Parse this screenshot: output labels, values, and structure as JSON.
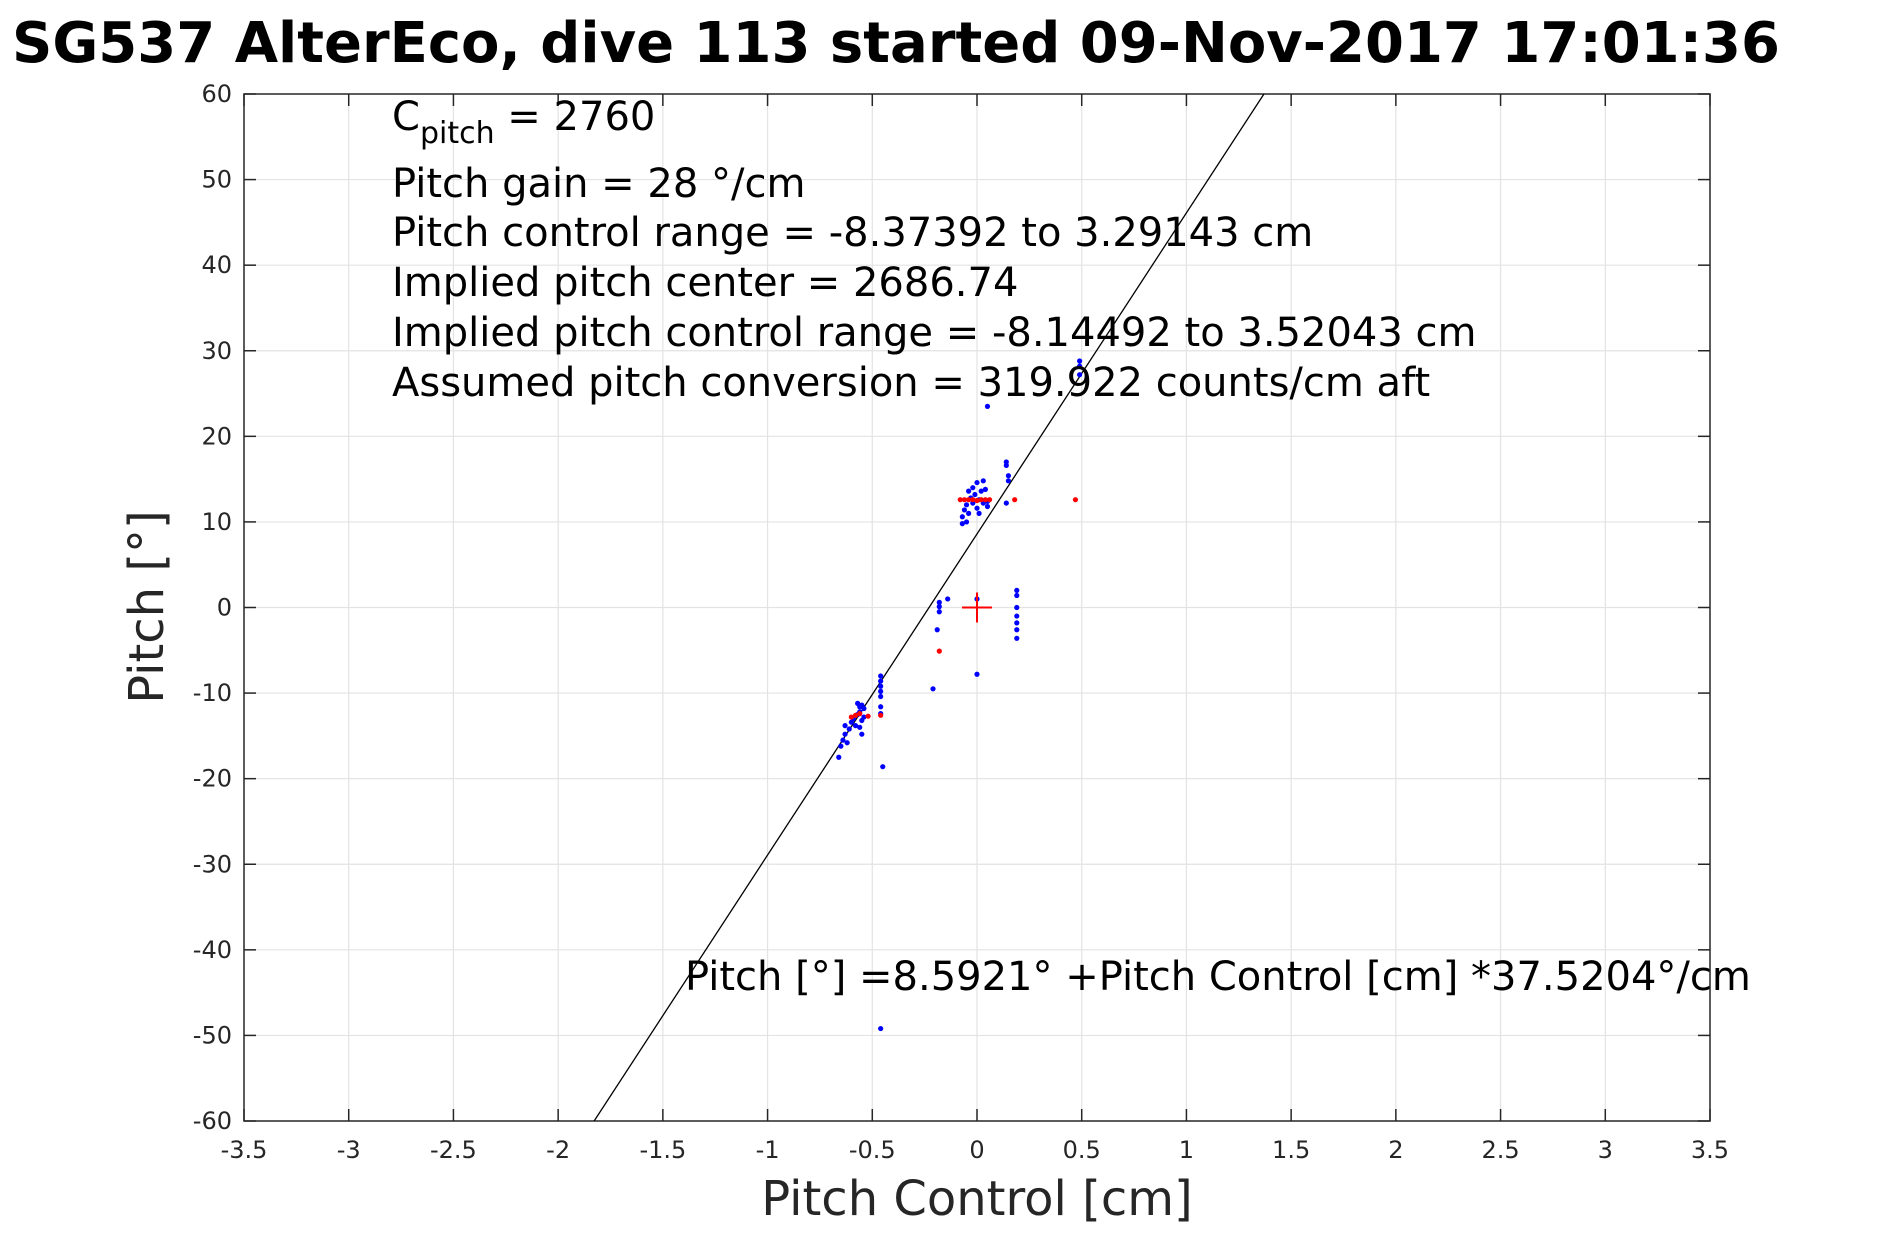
{
  "chart_data": {
    "type": "scatter",
    "title": "SG537 AlterEco, dive 113 started 09-Nov-2017 17:01:36",
    "xlabel": "Pitch Control [cm]",
    "ylabel": "Pitch [°]",
    "xlim": [
      -3.5,
      3.5
    ],
    "ylim": [
      -60,
      60
    ],
    "xticks": [
      -3.5,
      -3,
      -2.5,
      -2,
      -1.5,
      -1,
      -0.5,
      0,
      0.5,
      1,
      1.5,
      2,
      2.5,
      3,
      3.5
    ],
    "yticks": [
      -60,
      -50,
      -40,
      -30,
      -20,
      -10,
      0,
      10,
      20,
      30,
      40,
      50,
      60
    ],
    "xtick_labels": [
      "-3.5",
      "-3",
      "-2.5",
      "-2",
      "-1.5",
      "-1",
      "-0.5",
      "0",
      "0.5",
      "1",
      "1.5",
      "2",
      "2.5",
      "3",
      "3.5"
    ],
    "ytick_labels": [
      "-60",
      "-50",
      "-40",
      "-30",
      "-20",
      "-10",
      "0",
      "10",
      "20",
      "30",
      "40",
      "50",
      "60"
    ],
    "grid": true,
    "annotations": {
      "c_pitch_main": "C",
      "c_pitch_sub": "pitch",
      "c_pitch_value": " = 2760",
      "lines": [
        "Pitch gain = 28 °/cm",
        "Pitch control range = -8.37392 to 3.29143 cm",
        "Implied pitch center = 2686.74",
        "Implied pitch control range = -8.14492 to 3.52043 cm",
        "Assumed pitch conversion = 319.922 counts/cm aft"
      ],
      "fit_equation": "Pitch [°] =8.5921° +Pitch Control [cm] *37.5204°/cm"
    },
    "fit_line": {
      "intercept": 8.5921,
      "slope": 37.5204,
      "color": "#000000"
    },
    "center_marker": {
      "x": 0,
      "y": 0,
      "color": "#ff0000"
    },
    "series": [
      {
        "color": "#0000ff",
        "points": [
          [
            -0.66,
            -17.5
          ],
          [
            -0.65,
            -16.2
          ],
          [
            -0.64,
            -15.5
          ],
          [
            -0.63,
            -14.8
          ],
          [
            -0.62,
            -15.8
          ],
          [
            -0.63,
            -13.8
          ],
          [
            -0.61,
            -14.2
          ],
          [
            -0.6,
            -13.4
          ],
          [
            -0.59,
            -13.0
          ],
          [
            -0.58,
            -13.8
          ],
          [
            -0.57,
            -12.5
          ],
          [
            -0.57,
            -11.2
          ],
          [
            -0.56,
            -11.6
          ],
          [
            -0.56,
            -12.2
          ],
          [
            -0.55,
            -11.4
          ],
          [
            -0.55,
            -13.2
          ],
          [
            -0.56,
            -14.0
          ],
          [
            -0.55,
            -14.8
          ],
          [
            -0.54,
            -12.8
          ],
          [
            -0.54,
            -11.8
          ],
          [
            -0.46,
            -8.0
          ],
          [
            -0.46,
            -8.6
          ],
          [
            -0.46,
            -9.2
          ],
          [
            -0.46,
            -9.8
          ],
          [
            -0.46,
            -10.4
          ],
          [
            -0.46,
            -11.6
          ],
          [
            -0.46,
            -12.4
          ],
          [
            -0.45,
            -18.6
          ],
          [
            -0.46,
            -49.2
          ],
          [
            -0.21,
            -9.5
          ],
          [
            -0.19,
            -2.6
          ],
          [
            -0.18,
            -0.5
          ],
          [
            -0.18,
            0.1
          ],
          [
            -0.18,
            0.6
          ],
          [
            -0.14,
            1.0
          ],
          [
            0.0,
            -7.8
          ],
          [
            0.0,
            1.0
          ],
          [
            0.19,
            2.0
          ],
          [
            0.19,
            1.4
          ],
          [
            0.19,
            0.0
          ],
          [
            0.19,
            -1.0
          ],
          [
            0.19,
            -1.8
          ],
          [
            0.19,
            -2.6
          ],
          [
            0.19,
            -3.6
          ],
          [
            -0.07,
            9.8
          ],
          [
            -0.07,
            10.6
          ],
          [
            -0.06,
            11.4
          ],
          [
            -0.05,
            10.0
          ],
          [
            -0.05,
            12.0
          ],
          [
            -0.04,
            11.0
          ],
          [
            -0.03,
            12.8
          ],
          [
            -0.04,
            13.6
          ],
          [
            -0.02,
            14.0
          ],
          [
            -0.02,
            12.2
          ],
          [
            -0.01,
            13.2
          ],
          [
            0.0,
            14.6
          ],
          [
            0.0,
            11.6
          ],
          [
            0.01,
            11.0
          ],
          [
            0.01,
            12.6
          ],
          [
            0.02,
            13.6
          ],
          [
            0.03,
            12.2
          ],
          [
            0.03,
            14.8
          ],
          [
            0.04,
            13.8
          ],
          [
            0.05,
            11.8
          ],
          [
            0.05,
            12.4
          ],
          [
            0.05,
            23.5
          ],
          [
            0.14,
            12.2
          ],
          [
            0.14,
            16.6
          ],
          [
            0.14,
            17.0
          ],
          [
            0.15,
            15.4
          ],
          [
            0.15,
            14.8
          ],
          [
            0.49,
            28.8
          ],
          [
            0.49,
            28.2
          ],
          [
            0.49,
            27.2
          ]
        ]
      },
      {
        "color": "#ff0000",
        "points": [
          [
            -0.6,
            -12.8
          ],
          [
            -0.58,
            -12.6
          ],
          [
            -0.56,
            -12.4
          ],
          [
            -0.52,
            -12.7
          ],
          [
            -0.46,
            -12.6
          ],
          [
            -0.18,
            -5.1
          ],
          [
            -0.08,
            12.6
          ],
          [
            -0.06,
            12.6
          ],
          [
            -0.04,
            12.6
          ],
          [
            -0.02,
            12.6
          ],
          [
            0.0,
            12.5
          ],
          [
            0.02,
            12.6
          ],
          [
            0.04,
            12.6
          ],
          [
            0.06,
            12.6
          ],
          [
            0.18,
            12.6
          ],
          [
            0.47,
            12.6
          ]
        ]
      }
    ]
  }
}
